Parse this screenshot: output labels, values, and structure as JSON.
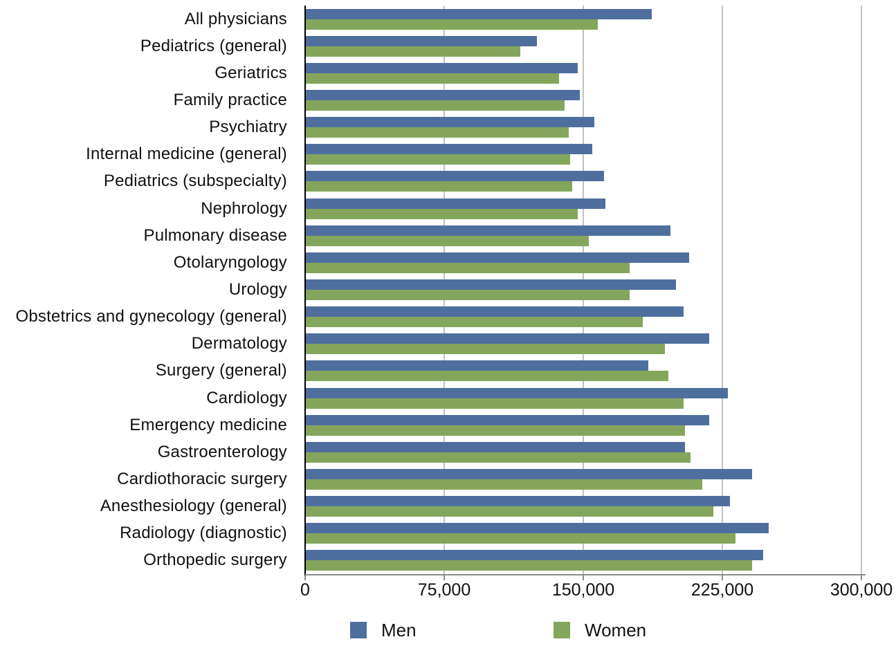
{
  "chart_data": {
    "type": "bar",
    "orientation": "horizontal",
    "title": "",
    "xlabel": "",
    "ylabel": "",
    "xlim": [
      0,
      300000
    ],
    "x_ticks": [
      0,
      75000,
      150000,
      225000,
      300000
    ],
    "x_tick_labels": [
      "0",
      "75,000",
      "150,000",
      "225,000",
      "300,000"
    ],
    "grid": "vertical-gridlines-at-ticks",
    "legend_position": "bottom",
    "categories": [
      "All physicians",
      "Pediatrics (general)",
      "Geriatrics",
      "Family practice",
      "Psychiatry",
      "Internal medicine (general)",
      "Pediatrics (subspecialty)",
      "Nephrology",
      "Pulmonary disease",
      "Otolaryngology",
      "Urology",
      "Obstetrics and gynecology (general)",
      "Dermatology",
      "Surgery (general)",
      "Cardiology",
      "Emergency medicine",
      "Gastroenterology",
      "Cardiothoracic surgery",
      "Anesthesiology (general)",
      "Radiology (diagnostic)",
      "Orthopedic surgery"
    ],
    "series": [
      {
        "name": "Men",
        "color": "#4e6f9e",
        "values": [
          187000,
          125000,
          147000,
          148000,
          156000,
          155000,
          161000,
          162000,
          197000,
          207000,
          200000,
          204000,
          218000,
          185000,
          228000,
          218000,
          205000,
          241000,
          229000,
          250000,
          247000
        ]
      },
      {
        "name": "Women",
        "color": "#84a65c",
        "values": [
          158000,
          116000,
          137000,
          140000,
          142000,
          143000,
          144000,
          147000,
          153000,
          175000,
          175000,
          182000,
          194000,
          196000,
          204000,
          205000,
          208000,
          214000,
          220000,
          232000,
          241000
        ]
      }
    ],
    "colors": {
      "men": "#4e6f9e",
      "women": "#84a65c",
      "gridline": "#c2c2c2",
      "y_axis": "#000000",
      "x_axis": "#8c8c8c",
      "text": "#111111"
    }
  }
}
